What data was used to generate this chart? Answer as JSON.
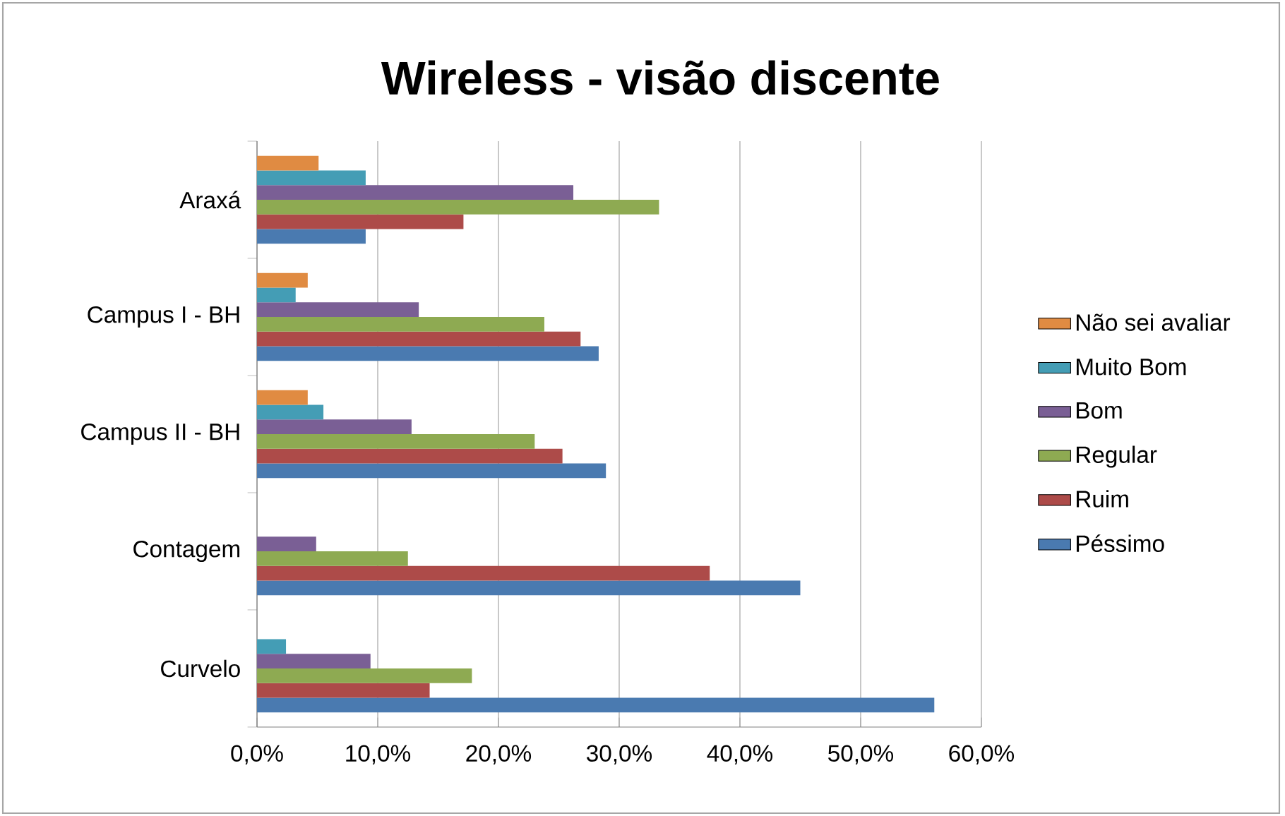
{
  "chart_data": {
    "type": "bar",
    "orientation": "horizontal",
    "title": "Wireless - visão discente",
    "categories": [
      "Araxá",
      "Campus I - BH",
      "Campus II - BH",
      "Contagem",
      "Curvelo"
    ],
    "series": [
      {
        "name": "Péssimo",
        "color": "#4a7ab0",
        "values": [
          9.0,
          28.3,
          28.9,
          45.0,
          56.1
        ]
      },
      {
        "name": "Ruim",
        "color": "#ad4b49",
        "values": [
          17.1,
          26.8,
          25.3,
          37.5,
          14.3
        ]
      },
      {
        "name": "Regular",
        "color": "#8eaa52",
        "values": [
          33.3,
          23.8,
          23.0,
          12.5,
          17.8
        ]
      },
      {
        "name": "Bom",
        "color": "#7a5f95",
        "values": [
          26.2,
          13.4,
          12.8,
          4.9,
          9.4
        ]
      },
      {
        "name": "Muito Bom",
        "color": "#449db5",
        "values": [
          9.0,
          3.2,
          5.5,
          null,
          2.4
        ]
      },
      {
        "name": "Não sei avaliar",
        "color": "#e08b42",
        "values": [
          5.1,
          4.2,
          4.2,
          null,
          null
        ]
      }
    ],
    "xlim": [
      0,
      60
    ],
    "xticks": [
      {
        "value": 0,
        "label": "0,0%"
      },
      {
        "value": 10,
        "label": "10,0%"
      },
      {
        "value": 20,
        "label": "20,0%"
      },
      {
        "value": 30,
        "label": "30,0%"
      },
      {
        "value": 40,
        "label": "40,0%"
      },
      {
        "value": 50,
        "label": "50,0%"
      },
      {
        "value": 60,
        "label": "60,0%"
      }
    ],
    "grid": "x",
    "legend": "right"
  }
}
